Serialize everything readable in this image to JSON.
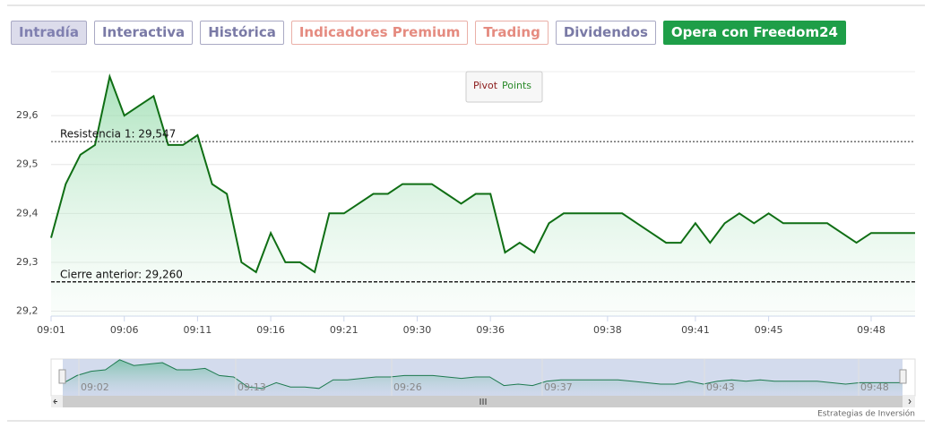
{
  "tabs": [
    "Intradía",
    "Interactiva",
    "Histórica",
    "Indicadores Premium",
    "Trading",
    "Dividendos"
  ],
  "cta": "Opera con Freedom24",
  "pivot_button": {
    "first": "Pivot",
    "second": "Points"
  },
  "chart_data": {
    "type": "area",
    "categories": [
      "09:01",
      null,
      null,
      null,
      null,
      "09:06",
      null,
      null,
      null,
      null,
      "09:11",
      null,
      null,
      null,
      null,
      "09:16",
      null,
      null,
      null,
      null,
      "09:21",
      null,
      null,
      null,
      null,
      "09:30",
      null,
      null,
      null,
      null,
      "09:36",
      null,
      null,
      null,
      null,
      null,
      null,
      null,
      "09:38",
      null,
      null,
      null,
      null,
      null,
      "09:41",
      null,
      null,
      null,
      null,
      "09:45",
      null,
      null,
      null,
      null,
      null,
      null,
      "09:48",
      null,
      null,
      null
    ],
    "values": [
      29.35,
      29.46,
      29.52,
      29.54,
      29.68,
      29.6,
      29.62,
      29.64,
      29.54,
      29.54,
      29.56,
      29.46,
      29.44,
      29.3,
      29.28,
      29.36,
      29.3,
      29.3,
      29.28,
      29.4,
      29.4,
      29.42,
      29.44,
      29.44,
      29.46,
      29.46,
      29.46,
      29.44,
      29.42,
      29.44,
      29.44,
      29.32,
      29.34,
      29.32,
      29.38,
      29.4,
      29.4,
      29.4,
      29.4,
      29.4,
      29.38,
      29.36,
      29.34,
      29.34,
      29.38,
      29.34,
      29.38,
      29.4,
      29.38,
      29.4,
      29.38,
      29.38,
      29.38,
      29.38,
      29.36,
      29.34,
      29.36,
      29.36,
      29.36,
      29.36
    ],
    "color": "#0f6e14",
    "ylim": [
      29.19,
      29.69
    ],
    "yticks": [
      {
        "value": 29.2,
        "label": "29,2"
      },
      {
        "value": 29.3,
        "label": "29,3"
      },
      {
        "value": 29.4,
        "label": "29,4"
      },
      {
        "value": 29.5,
        "label": "29,5"
      },
      {
        "value": 29.6,
        "label": "29,6"
      }
    ],
    "grid": true,
    "reference_lines": [
      {
        "label": "Resistencia 1: 29,547",
        "value": 29.547
      },
      {
        "label": "Cierre anterior: 29,260",
        "value": 29.26
      }
    ]
  },
  "navigator": {
    "labels": [
      "09:02",
      "09:13",
      "09:26",
      "09:37",
      "09:43",
      "09:48"
    ]
  },
  "footer": "Estrategias de Inversión"
}
